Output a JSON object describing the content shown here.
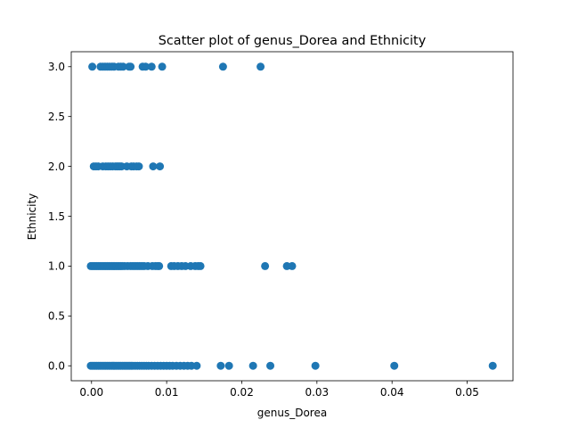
{
  "chart_data": {
    "type": "scatter",
    "title": "Scatter plot of genus_Dorea and Ethnicity",
    "xlabel": "genus_Dorea",
    "ylabel": "Ethnicity",
    "xlim": [
      -0.0027,
      0.0561
    ],
    "ylim": [
      -0.15,
      3.15
    ],
    "grid": false,
    "legend": "none",
    "point_color": "#1f77b4",
    "x_ticks": [
      {
        "value": 0.0,
        "label": "0.00"
      },
      {
        "value": 0.01,
        "label": "0.01"
      },
      {
        "value": 0.02,
        "label": "0.02"
      },
      {
        "value": 0.03,
        "label": "0.03"
      },
      {
        "value": 0.04,
        "label": "0.04"
      },
      {
        "value": 0.05,
        "label": "0.05"
      }
    ],
    "y_ticks": [
      {
        "value": 0.0,
        "label": "0.0"
      },
      {
        "value": 0.5,
        "label": "0.5"
      },
      {
        "value": 1.0,
        "label": "1.0"
      },
      {
        "value": 1.5,
        "label": "1.5"
      },
      {
        "value": 2.0,
        "label": "2.0"
      },
      {
        "value": 2.5,
        "label": "2.5"
      },
      {
        "value": 3.0,
        "label": "3.0"
      }
    ],
    "series": [
      {
        "points": [
          [
            0.0001,
            3
          ],
          [
            0.0012,
            3
          ],
          [
            0.0015,
            3
          ],
          [
            0.0018,
            3
          ],
          [
            0.0021,
            3
          ],
          [
            0.0024,
            3
          ],
          [
            0.0027,
            3
          ],
          [
            0.003,
            3
          ],
          [
            0.0036,
            3
          ],
          [
            0.0039,
            3
          ],
          [
            0.0042,
            3
          ],
          [
            0.005,
            3
          ],
          [
            0.0052,
            3
          ],
          [
            0.0068,
            3
          ],
          [
            0.0072,
            3
          ],
          [
            0.008,
            3
          ],
          [
            0.0094,
            3
          ],
          [
            0.0175,
            3
          ],
          [
            0.0225,
            3
          ],
          [
            0.0003,
            2
          ],
          [
            0.0006,
            2
          ],
          [
            0.0009,
            2
          ],
          [
            0.0015,
            2
          ],
          [
            0.0019,
            2
          ],
          [
            0.0022,
            2
          ],
          [
            0.0025,
            2
          ],
          [
            0.0028,
            2
          ],
          [
            0.0032,
            2
          ],
          [
            0.0034,
            2
          ],
          [
            0.0036,
            2
          ],
          [
            0.0038,
            2
          ],
          [
            0.004,
            2
          ],
          [
            0.0047,
            2
          ],
          [
            0.0053,
            2
          ],
          [
            0.0056,
            2
          ],
          [
            0.006,
            2
          ],
          [
            0.0063,
            2
          ],
          [
            0.0082,
            2
          ],
          [
            0.0091,
            2
          ],
          [
            -0.0001,
            1
          ],
          [
            0.0001,
            1
          ],
          [
            0.0003,
            1
          ],
          [
            0.0005,
            1
          ],
          [
            0.0007,
            1
          ],
          [
            0.0009,
            1
          ],
          [
            0.0011,
            1
          ],
          [
            0.0013,
            1
          ],
          [
            0.0015,
            1
          ],
          [
            0.0017,
            1
          ],
          [
            0.0019,
            1
          ],
          [
            0.0021,
            1
          ],
          [
            0.0023,
            1
          ],
          [
            0.0025,
            1
          ],
          [
            0.0027,
            1
          ],
          [
            0.0029,
            1
          ],
          [
            0.0031,
            1
          ],
          [
            0.0033,
            1
          ],
          [
            0.0035,
            1
          ],
          [
            0.0037,
            1
          ],
          [
            0.0039,
            1
          ],
          [
            0.0041,
            1
          ],
          [
            0.0044,
            1
          ],
          [
            0.0048,
            1
          ],
          [
            0.0052,
            1
          ],
          [
            0.0055,
            1
          ],
          [
            0.0058,
            1
          ],
          [
            0.0061,
            1
          ],
          [
            0.0064,
            1
          ],
          [
            0.0067,
            1
          ],
          [
            0.007,
            1
          ],
          [
            0.0075,
            1
          ],
          [
            0.0081,
            1
          ],
          [
            0.0085,
            1
          ],
          [
            0.0088,
            1
          ],
          [
            0.009,
            1
          ],
          [
            0.0106,
            1
          ],
          [
            0.011,
            1
          ],
          [
            0.0115,
            1
          ],
          [
            0.012,
            1
          ],
          [
            0.0125,
            1
          ],
          [
            0.0132,
            1
          ],
          [
            0.0138,
            1
          ],
          [
            0.0142,
            1
          ],
          [
            0.0145,
            1
          ],
          [
            0.0231,
            1
          ],
          [
            0.026,
            1
          ],
          [
            0.0267,
            1
          ],
          [
            -0.0001,
            0
          ],
          [
            0.0001,
            0
          ],
          [
            0.0003,
            0
          ],
          [
            0.0005,
            0
          ],
          [
            0.0007,
            0
          ],
          [
            0.0009,
            0
          ],
          [
            0.0011,
            0
          ],
          [
            0.0013,
            0
          ],
          [
            0.0015,
            0
          ],
          [
            0.0017,
            0
          ],
          [
            0.0019,
            0
          ],
          [
            0.0021,
            0
          ],
          [
            0.0023,
            0
          ],
          [
            0.0025,
            0
          ],
          [
            0.0027,
            0
          ],
          [
            0.0029,
            0
          ],
          [
            0.0031,
            0
          ],
          [
            0.0033,
            0
          ],
          [
            0.0035,
            0
          ],
          [
            0.0037,
            0
          ],
          [
            0.0039,
            0
          ],
          [
            0.0041,
            0
          ],
          [
            0.0043,
            0
          ],
          [
            0.0045,
            0
          ],
          [
            0.0047,
            0
          ],
          [
            0.0049,
            0
          ],
          [
            0.0051,
            0
          ],
          [
            0.0053,
            0
          ],
          [
            0.0055,
            0
          ],
          [
            0.0058,
            0
          ],
          [
            0.0061,
            0
          ],
          [
            0.0064,
            0
          ],
          [
            0.0067,
            0
          ],
          [
            0.007,
            0
          ],
          [
            0.0073,
            0
          ],
          [
            0.0076,
            0
          ],
          [
            0.008,
            0
          ],
          [
            0.0084,
            0
          ],
          [
            0.0088,
            0
          ],
          [
            0.0092,
            0
          ],
          [
            0.0096,
            0
          ],
          [
            0.01,
            0
          ],
          [
            0.0104,
            0
          ],
          [
            0.0108,
            0
          ],
          [
            0.0113,
            0
          ],
          [
            0.0118,
            0
          ],
          [
            0.0123,
            0
          ],
          [
            0.0128,
            0
          ],
          [
            0.0133,
            0
          ],
          [
            0.014,
            0
          ],
          [
            0.0172,
            0
          ],
          [
            0.0183,
            0
          ],
          [
            0.0215,
            0
          ],
          [
            0.0238,
            0
          ],
          [
            0.0298,
            0
          ],
          [
            0.0403,
            0
          ],
          [
            0.0534,
            0
          ]
        ]
      }
    ]
  }
}
